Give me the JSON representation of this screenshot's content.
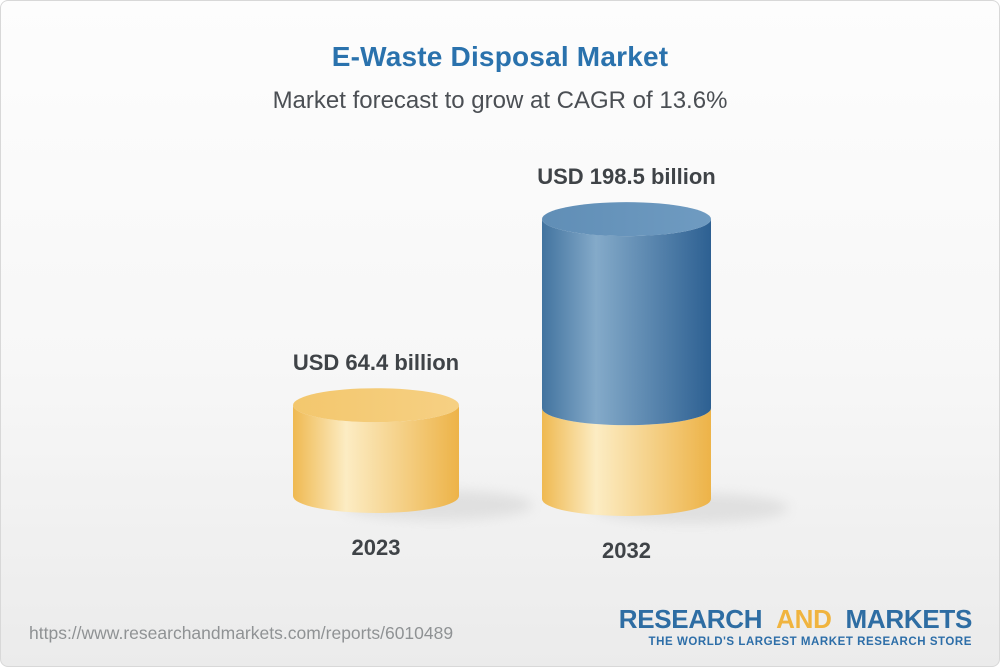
{
  "header": {
    "title": "E-Waste Disposal Market",
    "subtitle": "Market forecast to grow at CAGR of 13.6%"
  },
  "chart_data": {
    "type": "bar",
    "variant": "3d-cylinder",
    "title": "E-Waste Disposal Market",
    "subtitle": "Market forecast to grow at CAGR of 13.6%",
    "cagr_percent": 13.6,
    "unit": "USD billion",
    "categories": [
      "2023",
      "2032"
    ],
    "values": [
      64.4,
      198.5
    ],
    "value_labels": [
      "USD 64.4 billion",
      "USD 198.5 billion"
    ],
    "stacking_note": "2032 cylinder shows gold base equal to the 2023 value (64.4) with blue growth segment above it",
    "ylim": [
      0,
      200
    ],
    "grid": false,
    "legend": "none",
    "colors": {
      "gold_edge_left": "#efb951",
      "gold_highlight": "#fcecc3",
      "gold_edge_right": "#edb348",
      "gold_top_left": "#f3c76d",
      "gold_top_right": "#f6d083",
      "blue_edge_left": "#42739f",
      "blue_highlight": "#84aac9",
      "blue_edge_right": "#2d6092",
      "blue_top_left": "#608eb6",
      "blue_top_right": "#6f9bc1",
      "shadow": "#bfbfbf"
    }
  },
  "footer": {
    "url": "https://www.researchandmarkets.com/reports/6010489",
    "logo": {
      "word1": "RESEARCH",
      "word2": "AND",
      "word3": "MARKETS",
      "tagline": "THE WORLD'S LARGEST MARKET RESEARCH STORE"
    }
  },
  "theme": {
    "title_color": "#2a72ad",
    "subtitle_color": "#4b4f54",
    "label_color": "#3f4347",
    "url_color": "#8f9294",
    "logo_blue": "#2e6da3",
    "logo_gold": "#f0b43f",
    "tagline_color": "#2d6ea8"
  }
}
